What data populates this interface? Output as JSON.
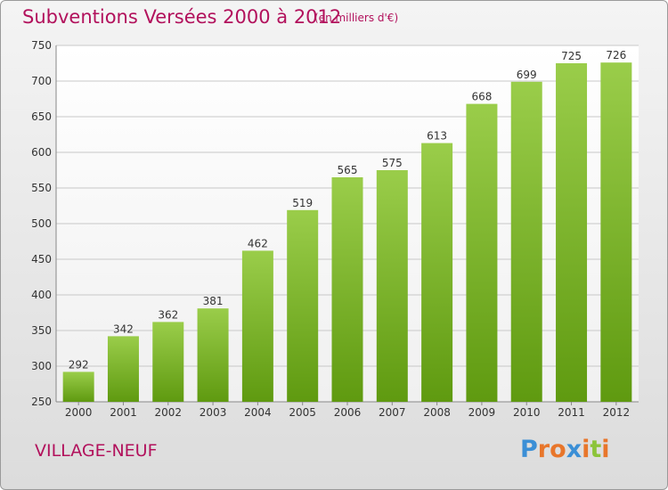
{
  "chart_data": {
    "type": "bar",
    "title": "Subventions Versées 2000 à 2012",
    "subtitle": "(en milliers d'€)",
    "categories": [
      "2000",
      "2001",
      "2002",
      "2003",
      "2004",
      "2005",
      "2006",
      "2007",
      "2008",
      "2009",
      "2010",
      "2011",
      "2012"
    ],
    "values": [
      292,
      342,
      362,
      381,
      462,
      519,
      565,
      575,
      613,
      668,
      699,
      725,
      726
    ],
    "ylim": [
      250,
      750
    ],
    "yticks": [
      250,
      300,
      350,
      400,
      450,
      500,
      550,
      600,
      650,
      700,
      750
    ],
    "grid": true,
    "colors": {
      "bar_top": "#9acd4a",
      "bar_bottom": "#5f9a10",
      "text_accent": "#b2115c"
    }
  },
  "commune": "VILLAGE-NEUF",
  "logo": {
    "text": "Proxiti",
    "letters": [
      {
        "ch": "P",
        "color": "#3b8fd6"
      },
      {
        "ch": "r",
        "color": "#e8762b"
      },
      {
        "ch": "o",
        "color": "#e8762b"
      },
      {
        "ch": "x",
        "color": "#3b8fd6"
      },
      {
        "ch": "i",
        "color": "#e8762b"
      },
      {
        "ch": "t",
        "color": "#8cc43a"
      },
      {
        "ch": "i",
        "color": "#e8762b"
      }
    ]
  }
}
